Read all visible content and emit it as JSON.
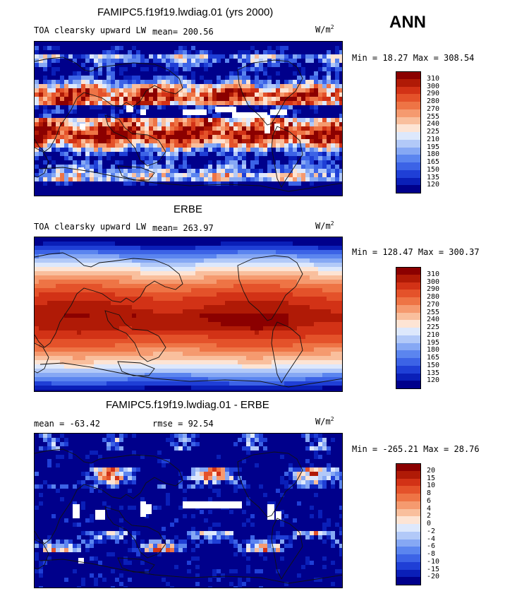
{
  "season": "ANN",
  "units_base": "W/m",
  "units_exp": "2",
  "panels": [
    {
      "id": "model",
      "title": "FAMIPC5.f19f19.lwdiag.01 (yrs 2000)",
      "variable": "TOA clearsky upward LW",
      "mean_text": "mean= 200.56",
      "min_max_text": "Min =  18.27 Max = 308.54",
      "colorbar_labels": [
        "310",
        "300",
        "290",
        "280",
        "270",
        "255",
        "240",
        "225",
        "210",
        "195",
        "180",
        "165",
        "150",
        "135",
        "120"
      ]
    },
    {
      "id": "obs",
      "title": "ERBE",
      "variable": "TOA clearsky upward LW",
      "mean_text": "mean= 263.97",
      "min_max_text": "Min = 128.47 Max = 300.37",
      "colorbar_labels": [
        "310",
        "300",
        "290",
        "280",
        "270",
        "255",
        "240",
        "225",
        "210",
        "195",
        "180",
        "165",
        "150",
        "135",
        "120"
      ]
    },
    {
      "id": "diff",
      "title": "FAMIPC5.f19f19.lwdiag.01 - ERBE",
      "mean_text": "mean = -63.42",
      "rmse_text": "rmse =  92.54",
      "min_max_text": "Min = -265.21 Max =  28.76",
      "colorbar_labels": [
        "20",
        "15",
        "10",
        "8",
        "6",
        "4",
        "2",
        "0",
        "-2",
        "-4",
        "-6",
        "-8",
        "-10",
        "-15",
        "-20"
      ]
    }
  ],
  "colors": {
    "abs_scale": [
      "#00008b",
      "#0a1fb8",
      "#1f3fd6",
      "#3c63e6",
      "#5b85ef",
      "#86a8f4",
      "#b2c9f8",
      "#dde8fc",
      "#fde4d4",
      "#f9bf9d",
      "#f59a6f",
      "#ee7445",
      "#e4522a",
      "#d23216",
      "#b01a06",
      "#8b0000"
    ],
    "diff_scale": [
      "#00008b",
      "#0a1fb8",
      "#1f3fd6",
      "#3c63e6",
      "#5b85ef",
      "#86a8f4",
      "#b2c9f8",
      "#dde8fc",
      "#fde4d4",
      "#f9bf9d",
      "#f59a6f",
      "#ee7445",
      "#e4522a",
      "#d23216",
      "#b01a06",
      "#8b0000"
    ]
  },
  "chart_data": [
    {
      "type": "heatmap",
      "title": "FAMIPC5.f19f19.lwdiag.01 (yrs 2000)",
      "variable": "TOA clearsky upward LW",
      "units": "W/m^2",
      "mean": 200.56,
      "min": 18.27,
      "max": 308.54,
      "contour_levels": [
        120,
        135,
        150,
        165,
        180,
        195,
        210,
        225,
        240,
        255,
        270,
        280,
        290,
        300,
        310
      ]
    },
    {
      "type": "heatmap",
      "title": "ERBE",
      "variable": "TOA clearsky upward LW",
      "units": "W/m^2",
      "mean": 263.97,
      "min": 128.47,
      "max": 300.37,
      "contour_levels": [
        120,
        135,
        150,
        165,
        180,
        195,
        210,
        225,
        240,
        255,
        270,
        280,
        290,
        300,
        310
      ]
    },
    {
      "type": "heatmap",
      "title": "FAMIPC5.f19f19.lwdiag.01 - ERBE",
      "units": "W/m^2",
      "mean": -63.42,
      "rmse": 92.54,
      "min": -265.21,
      "max": 28.76,
      "contour_levels": [
        -20,
        -15,
        -10,
        -8,
        -6,
        -4,
        -2,
        0,
        2,
        4,
        6,
        8,
        10,
        15,
        20
      ]
    }
  ]
}
